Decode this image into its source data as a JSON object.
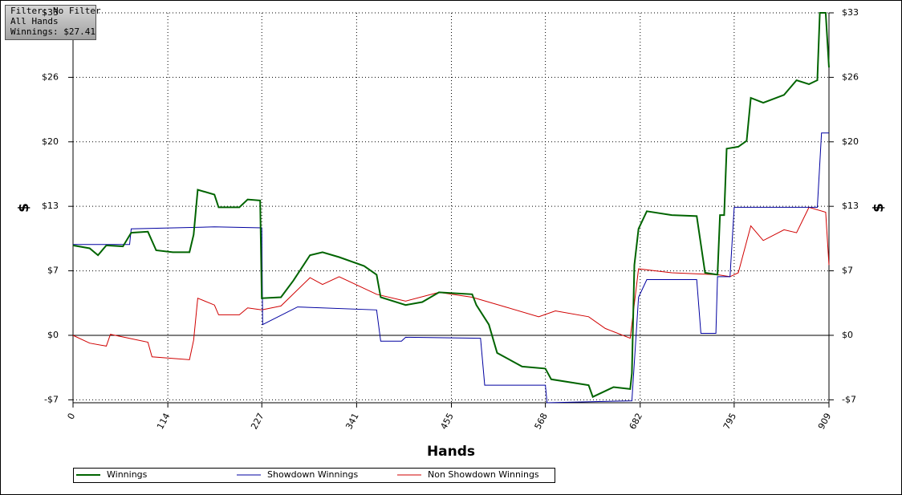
{
  "chart_data": {
    "type": "line",
    "info": [
      "Filter: No Filter",
      "All Hands",
      "Winnings: $27.41"
    ],
    "xlabel": "Hands",
    "ylabel": "$",
    "y2label": "$",
    "xlim": [
      0,
      909
    ],
    "xticks": [
      0,
      114,
      227,
      341,
      455,
      568,
      682,
      795,
      909
    ],
    "ylim": [
      -6.9,
      33
    ],
    "yticks": [
      {
        "value": -6.6,
        "label": "-$7"
      },
      {
        "value": 0,
        "label": "$0"
      },
      {
        "value": 6.6,
        "label": "$7"
      },
      {
        "value": 13.2,
        "label": "$13"
      },
      {
        "value": 19.8,
        "label": "$20"
      },
      {
        "value": 26.4,
        "label": "$26"
      },
      {
        "value": 33,
        "label": "$33"
      }
    ],
    "grid": true,
    "series": [
      {
        "name": "Winnings",
        "color": "#006400",
        "x": [
          0,
          20,
          30,
          40,
          60,
          70,
          90,
          100,
          120,
          140,
          145,
          150,
          170,
          175,
          200,
          210,
          225,
          227,
          250,
          265,
          285,
          300,
          320,
          350,
          365,
          370,
          400,
          420,
          440,
          480,
          485,
          500,
          510,
          540,
          568,
          575,
          620,
          625,
          650,
          670,
          672,
          675,
          680,
          690,
          720,
          750,
          760,
          775,
          778,
          783,
          786,
          800,
          810,
          815,
          830,
          855,
          870,
          885,
          895,
          898,
          905,
          909
        ],
        "values": [
          9.2,
          8.9,
          8.2,
          9.2,
          9.1,
          10.5,
          10.6,
          8.7,
          8.5,
          8.5,
          10.3,
          14.9,
          14.4,
          13.1,
          13.1,
          13.9,
          13.8,
          3.8,
          3.9,
          5.6,
          8.2,
          8.5,
          8.0,
          7.1,
          6.2,
          3.9,
          3.1,
          3.4,
          4.4,
          4.2,
          3.1,
          1.1,
          -1.8,
          -3.2,
          -3.4,
          -4.5,
          -5.1,
          -6.3,
          -5.3,
          -5.5,
          -3.9,
          7.2,
          10.9,
          12.7,
          12.3,
          12.2,
          6.4,
          6.2,
          12.3,
          12.3,
          19.1,
          19.3,
          19.9,
          24.3,
          23.8,
          24.6,
          26.1,
          25.7,
          26.1,
          33,
          33,
          27.41
        ]
      },
      {
        "name": "Showdown Winnings",
        "color": "#0000a0",
        "x": [
          0,
          68,
          70,
          170,
          227,
          228,
          270,
          365,
          370,
          395,
          400,
          490,
          495,
          568,
          570,
          672,
          680,
          690,
          750,
          755,
          773,
          775,
          790,
          795,
          895,
          900,
          909
        ],
        "values": [
          9.3,
          9.3,
          10.9,
          11.1,
          11.0,
          1.1,
          2.9,
          2.6,
          -0.6,
          -0.6,
          -0.2,
          -0.3,
          -5.1,
          -5.1,
          -6.9,
          -6.7,
          3.9,
          5.7,
          5.7,
          0.2,
          0.2,
          6.0,
          6.0,
          13.1,
          13.1,
          20.7,
          20.7
        ]
      },
      {
        "name": "Non Showdown Winnings",
        "color": "#d00000",
        "x": [
          0,
          20,
          40,
          45,
          90,
          95,
          140,
          145,
          150,
          170,
          175,
          200,
          210,
          227,
          250,
          285,
          300,
          320,
          365,
          400,
          440,
          480,
          520,
          560,
          580,
          620,
          640,
          670,
          680,
          720,
          775,
          790,
          800,
          815,
          830,
          855,
          870,
          885,
          905,
          909
        ],
        "values": [
          0,
          -0.8,
          -1.1,
          0.1,
          -0.7,
          -2.2,
          -2.5,
          -0.5,
          3.8,
          3.1,
          2.1,
          2.1,
          2.8,
          2.6,
          3.0,
          5.9,
          5.2,
          6.0,
          4.2,
          3.5,
          4.4,
          3.9,
          2.9,
          1.9,
          2.5,
          1.9,
          0.7,
          -0.3,
          6.8,
          6.4,
          6.2,
          6.0,
          6.4,
          11.2,
          9.7,
          10.8,
          10.5,
          13.1,
          12.6,
          7.2
        ]
      }
    ]
  }
}
